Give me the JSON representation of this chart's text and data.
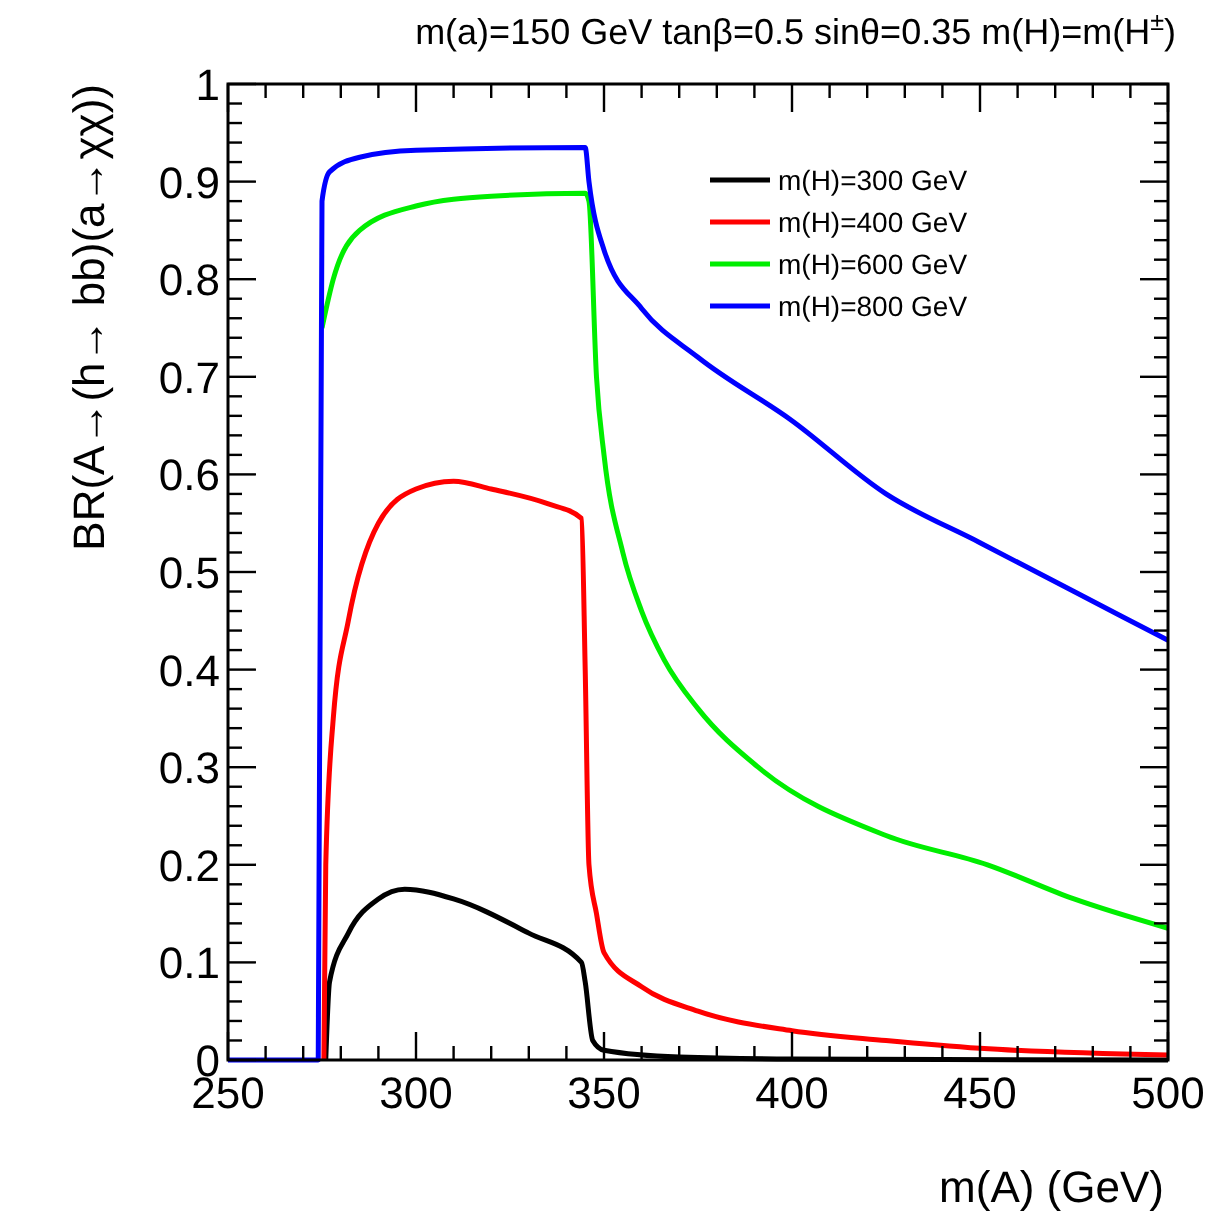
{
  "chart_data": {
    "type": "line",
    "title": "m(a)=150 GeV tanβ=0.5 sinθ=0.35 m(H)=m(H$^{±}$)",
    "xlabel": "m(A) (GeV)",
    "ylabel": "BR(A→(h→ bb)(a→χχ))",
    "xlim": [
      250,
      500
    ],
    "xticks": [
      250,
      300,
      350,
      400,
      450,
      500
    ],
    "ylim": [
      0,
      1
    ],
    "yticks": [
      0,
      0.1,
      0.2,
      0.3,
      0.4,
      0.5,
      0.6,
      0.7,
      0.8,
      0.9,
      1
    ],
    "grid": false,
    "legend": "top right",
    "line_style": "solid",
    "marker": "none",
    "series": [
      {
        "name": "m(H)=300 GeV",
        "color": "#000000",
        "x": [
          276,
          277,
          282,
          290,
          297,
          310,
          330,
          344,
          345,
          347,
          350,
          370,
          400,
          500
        ],
        "values": [
          0,
          0.08,
          0.13,
          0.165,
          0.175,
          0.165,
          0.13,
          0.1,
          0.08,
          0.02,
          0.01,
          0.003,
          0.001,
          0
        ]
      },
      {
        "name": "m(H)=400 GeV",
        "color": "#ff0000",
        "x": [
          275.5,
          276,
          278,
          282,
          290,
          300,
          310,
          320,
          335,
          344,
          345,
          346,
          348,
          350,
          360,
          375,
          400,
          425,
          450,
          500
        ],
        "values": [
          0,
          0.2,
          0.35,
          0.45,
          0.55,
          0.585,
          0.593,
          0.585,
          0.57,
          0.555,
          0.4,
          0.2,
          0.15,
          0.11,
          0.075,
          0.05,
          0.03,
          0.02,
          0.012,
          0.005
        ]
      },
      {
        "name": "m(H)=600 GeV",
        "color": "#00ee00",
        "x": [
          275,
          278,
          285,
          300,
          320,
          345,
          346,
          348,
          350,
          355,
          360,
          366,
          375,
          391,
          425,
          452,
          475,
          500
        ],
        "values": [
          0.75,
          0.8,
          0.85,
          0.875,
          0.885,
          0.888,
          0.88,
          0.7,
          0.62,
          0.52,
          0.46,
          0.41,
          0.36,
          0.3,
          0.23,
          0.2,
          0.165,
          0.135
        ]
      },
      {
        "name": "m(H)=800 GeV",
        "color": "#0000ff",
        "x": [
          250,
          274,
          275,
          277,
          285,
          300,
          345,
          346,
          350,
          360,
          375,
          400,
          425,
          450,
          475,
          500
        ],
        "values": [
          0,
          0,
          0.88,
          0.91,
          0.925,
          0.932,
          0.935,
          0.9,
          0.83,
          0.77,
          0.72,
          0.655,
          0.58,
          0.53,
          0.48,
          0.43
        ]
      }
    ]
  }
}
